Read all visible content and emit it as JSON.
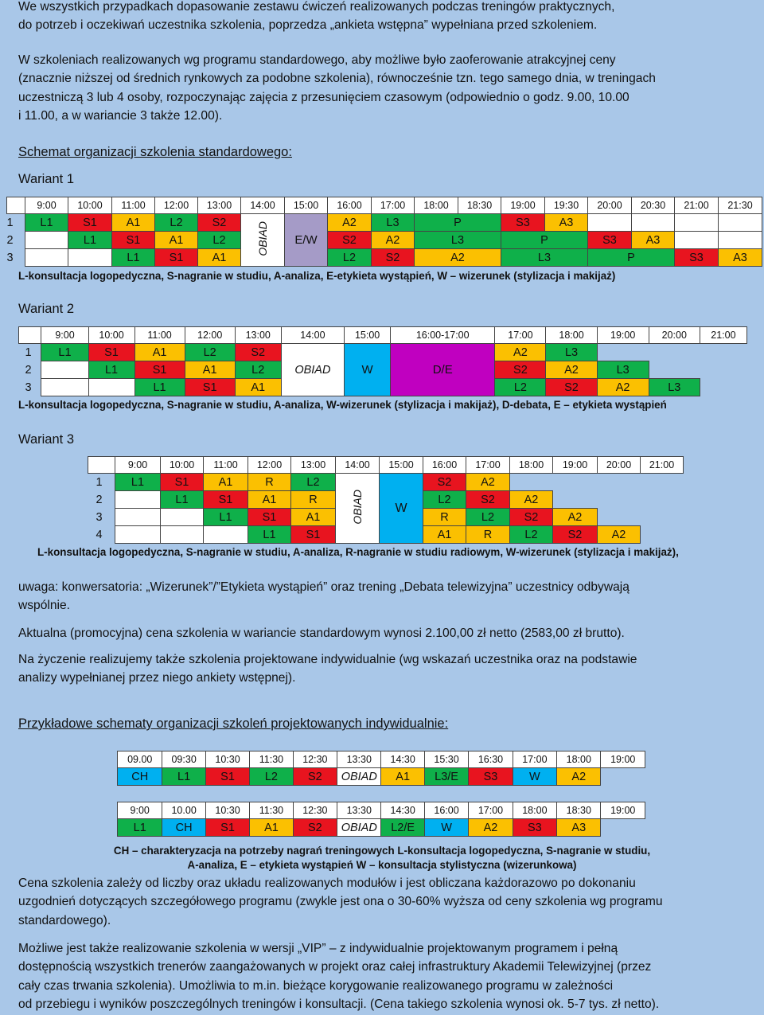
{
  "paragraphs": {
    "p1": [
      "We wszystkich przypadkach dopasowanie zestawu ćwiczeń realizowanych podczas treningów praktycznych,",
      "do potrzeb i oczekiwań uczestnika szkolenia, poprzedza „ankieta wstępna” wypełniana przed szkoleniem."
    ],
    "p2": [
      "W szkoleniach realizowanych wg programu standardowego, aby możliwe było zaoferowanie atrakcyjnej ceny",
      "(znacznie niższej od średnich rynkowych za podobne szkolenia), równocześnie tzn. tego samego dnia, w treningach",
      "uczestniczą 3 lub 4 osoby, rozpoczynając zajęcia z przesunięciem czasowym (odpowiednio o godz. 9.00, 10.00",
      "i 11.00, a w wariancie 3 także 12.00)."
    ],
    "p3": [
      "uwaga: konwersatoria: „Wizerunek”/”Etykieta wystąpień” oraz trening „Debata telewizyjna” uczestnicy odbywają",
      "wspólnie."
    ],
    "p4": [
      "Aktualna (promocyjna) cena szkolenia w wariancie standardowym wynosi 2.100,00 zł netto (2583,00 zł brutto)."
    ],
    "p5": [
      "Na życzenie realizujemy także szkolenia projektowane indywidualnie (wg wskazań uczestnika oraz na podstawie",
      "analizy wypełnianej przez niego ankiety wstępnej)."
    ],
    "p6": [
      "Cena szkolenia zależy od liczby oraz układu realizowanych modułów i jest obliczana każdorazowo po dokonaniu",
      "uzgodnień dotyczących szczegółowego programu (zwykle jest ona o 30-60% wyższa od ceny szkolenia wg programu",
      "standardowego)."
    ],
    "p7": [
      "Możliwe jest także realizowanie szkolenia w wersji „VIP” – z indywidualnie projektowanym programem i pełną",
      "dostępnością wszystkich trenerów zaangażowanych w projekt oraz całej infrastruktury Akademii Telewizyjnej (przez",
      "cały czas trwania szkolenia). Umożliwia to m.in. bieżące korygowanie realizowanego programu w zależności",
      "od przebiegu i wyników poszczególnych treningów i konsultacji. (Cena takiego szkolenia wynosi ok. 5-7 tys. zł netto)."
    ]
  },
  "headings": {
    "schemat_std": "Schemat organizacji szkolenia standardowego:",
    "wariant1": "Wariant 1",
    "wariant2": "Wariant 2",
    "wariant3": "Wariant 3",
    "przyklady": "Przykładowe schematy organizacji szkoleń projektowanych indywidualnie:"
  },
  "obiad": "OBIAD",
  "ew": "E/W",
  "w": "W",
  "de": "D/E",
  "colors": {
    "L": "#0fb04a",
    "S": "#e8141f",
    "A": "#fbc001",
    "W": "#00b0f0",
    "D": "#c000c0",
    "EW": "#a59bc7"
  },
  "v1": {
    "times": [
      "9:00",
      "10:00",
      "11:00",
      "12:00",
      "13:00",
      "14:00",
      "15:00",
      "16:00",
      "17:00",
      "18:00",
      "18:30",
      "19:00",
      "19:30",
      "20:00",
      "20:30",
      "21:00",
      "21:30"
    ],
    "rows": [
      {
        "n": "1",
        "cells": [
          "L1",
          "S1",
          "A1",
          "L2",
          "S2",
          "",
          "",
          "A2",
          "L3",
          "P",
          "S3",
          "A3",
          "",
          "",
          "",
          "",
          ""
        ]
      },
      {
        "n": "2",
        "cells": [
          "",
          "L1",
          "S1",
          "A1",
          "L2",
          "",
          "",
          "S2",
          "A2",
          "L3",
          "",
          "P",
          "S3",
          "A3",
          "",
          "",
          ""
        ]
      },
      {
        "n": "3",
        "cells": [
          "",
          "",
          "L1",
          "S1",
          "A1",
          "",
          "",
          "L2",
          "S2",
          "A2",
          "",
          "L3",
          "",
          "P",
          "S3",
          "A3",
          ""
        ]
      }
    ],
    "legend": "L-konsultacja logopedyczna, S-nagranie w studiu, A-analiza, E-etykieta wystąpień, W – wizerunek (stylizacja i makijaż)"
  },
  "v2": {
    "times": [
      "9:00",
      "10:00",
      "11:00",
      "12:00",
      "13:00",
      "14:00",
      "15:00",
      "16:00-17:00",
      "17:00",
      "18:00",
      "19:00",
      "20:00",
      "21:00"
    ],
    "rows": [
      {
        "n": "1",
        "cells": [
          "L1",
          "S1",
          "A1",
          "L2",
          "S2",
          "",
          "",
          "",
          "A2",
          "L3",
          "",
          "",
          ""
        ]
      },
      {
        "n": "2",
        "cells": [
          "",
          "L1",
          "S1",
          "A1",
          "L2",
          "",
          "",
          "",
          "S2",
          "A2",
          "L3",
          "",
          ""
        ]
      },
      {
        "n": "3",
        "cells": [
          "",
          "",
          "L1",
          "S1",
          "A1",
          "",
          "",
          "",
          "L2",
          "S2",
          "A2",
          "L3",
          ""
        ]
      }
    ],
    "legend": "L-konsultacja logopedyczna, S-nagranie w studiu, A-analiza, W-wizerunek (stylizacja i makijaż),  D-debata, E – etykieta wystąpień"
  },
  "v3": {
    "times": [
      "9:00",
      "10:00",
      "11:00",
      "12:00",
      "13:00",
      "14:00",
      "15:00",
      "16:00",
      "17:00",
      "18:00",
      "19:00",
      "20:00",
      "21:00"
    ],
    "rows": [
      {
        "n": "1",
        "cells": [
          "L1",
          "S1",
          "A1",
          "R",
          "L2",
          "",
          "",
          "S2",
          "A2",
          "",
          "",
          "",
          ""
        ]
      },
      {
        "n": "2",
        "cells": [
          "",
          "L1",
          "S1",
          "A1",
          "R",
          "",
          "",
          "L2",
          "S2",
          "A2",
          "",
          "",
          ""
        ]
      },
      {
        "n": "3",
        "cells": [
          "",
          "",
          "L1",
          "S1",
          "A1",
          "",
          "",
          "R",
          "L2",
          "S2",
          "A2",
          "",
          ""
        ]
      },
      {
        "n": "4",
        "cells": [
          "",
          "",
          "",
          "L1",
          "S1",
          "",
          "",
          "A1",
          "R",
          "L2",
          "S2",
          "A2",
          ""
        ]
      }
    ],
    "legend": "L-konsultacja logopedyczna, S-nagranie w studiu, A-analiza, R-nagranie w studiu radiowym, W-wizerunek (stylizacja i makijaż),"
  },
  "i1": {
    "times": [
      "09.00",
      "09:30",
      "10:30",
      "11:30",
      "12:30",
      "13:30",
      "14:30",
      "15:30",
      "16:30",
      "17:00",
      "18:00",
      "19:00"
    ],
    "cells": [
      "CH",
      "L1",
      "S1",
      "L2",
      "S2",
      "OBIAD",
      "A1",
      "L3/E",
      "S3",
      "W",
      "A2",
      ""
    ]
  },
  "i2": {
    "times": [
      "9:00",
      "10.00",
      "10:30",
      "11:30",
      "12:30",
      "13:30",
      "14:30",
      "16:00",
      "17:00",
      "18:00",
      "18:30",
      "19:00"
    ],
    "cells": [
      "L1",
      "CH",
      "S1",
      "A1",
      "S2",
      "OBIAD",
      "L2/E",
      "W",
      "A2",
      "S3",
      "A3",
      ""
    ]
  },
  "ind_legend": [
    "CH – charakteryzacja na potrzeby nagrań treningowych L-konsultacja logopedyczna, S-nagranie w studiu,",
    "A-analiza, E – etykieta wystąpień W – konsultacja stylistyczna (wizerunkowa)"
  ]
}
